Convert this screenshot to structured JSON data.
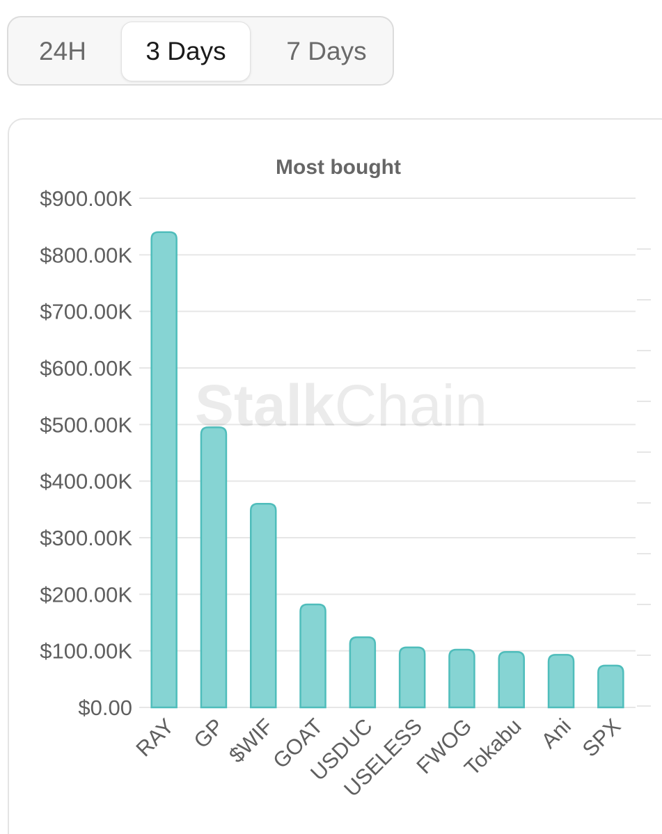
{
  "tabs": [
    {
      "label": "24H",
      "active": false
    },
    {
      "label": "3 Days",
      "active": true
    },
    {
      "label": "7 Days",
      "active": false
    }
  ],
  "watermark": {
    "bold": "Stalk",
    "light": "Chain"
  },
  "colors": {
    "bar_fill": "#86d4d3",
    "bar_stroke": "#4fbdbb",
    "grid": "#e6e6e6",
    "axis_text": "#5f5f5f",
    "title_text": "#666666"
  },
  "chart_data": {
    "type": "bar",
    "title": "Most bought",
    "categories": [
      "RAY",
      "GP",
      "$WIF",
      "GOAT",
      "USDUC",
      "USELESS",
      "FWOG",
      "Tokabu",
      "Ani",
      "SPX"
    ],
    "values": [
      840,
      495,
      360,
      182,
      124,
      106,
      102,
      98,
      93,
      74
    ],
    "value_unit": "thousand USD",
    "ylim": [
      0,
      900
    ],
    "yticks": [
      0,
      100,
      200,
      300,
      400,
      500,
      600,
      700,
      800,
      900
    ],
    "ytick_labels": [
      "$0.00",
      "$100.00K",
      "$200.00K",
      "$300.00K",
      "$400.00K",
      "$500.00K",
      "$600.00K",
      "$700.00K",
      "$800.00K",
      "$900.00K"
    ],
    "xlabel": "",
    "ylabel": "",
    "grid": true,
    "legend": "none"
  }
}
